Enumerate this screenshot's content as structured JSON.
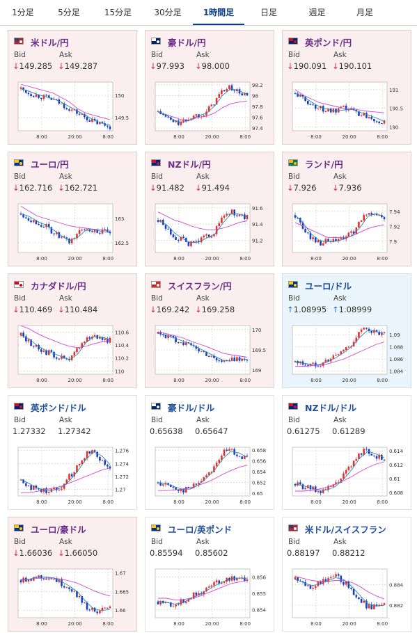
{
  "tabs": [
    {
      "label": "1分足",
      "active": false
    },
    {
      "label": "5分足",
      "active": false
    },
    {
      "label": "15分足",
      "active": false
    },
    {
      "label": "30分足",
      "active": false
    },
    {
      "label": "1時間足",
      "active": true
    },
    {
      "label": "日足",
      "active": false
    },
    {
      "label": "週足",
      "active": false
    },
    {
      "label": "月足",
      "active": false
    }
  ],
  "labels": {
    "bid": "Bid",
    "ask": "Ask"
  },
  "arrows": {
    "down": "↓",
    "up": "↑"
  },
  "colors": {
    "red": "#e53030",
    "blue": "#1a3ec0",
    "ma_pink": "#d444d4",
    "ma_teal": "#2a8aa8"
  },
  "cards": [
    {
      "pair": "米ドル/円",
      "flag": "us-jp-flag",
      "bid": "149.285",
      "ask": "149.287",
      "dir": "down",
      "yticks": [
        "150",
        "149.5"
      ],
      "xticks": [
        "8:00",
        "20:00",
        "8:00"
      ],
      "chart_data": {
        "type": "candlestick",
        "ylim": [
          149.2,
          150.3
        ],
        "ylim_note": "approx",
        "trend": [
          150.15,
          150.05,
          150.0,
          149.95,
          149.9,
          149.8,
          149.7,
          149.6,
          149.5,
          149.4,
          149.35,
          149.3
        ],
        "ma": [
          150.25,
          150.2,
          150.15,
          150.1,
          150.05,
          149.95,
          149.85,
          149.7,
          149.6,
          149.55,
          149.5,
          149.45
        ]
      }
    },
    {
      "pair": "豪ドル/円",
      "flag": "au-jp-flag",
      "bid": "97.993",
      "ask": "98.000",
      "dir": "down",
      "yticks": [
        "98.2",
        "98",
        "97.8",
        "97.6",
        "97.4"
      ],
      "xticks": [
        "8:00",
        "20:00",
        "8:00"
      ],
      "chart_data": {
        "type": "candlestick",
        "ylim": [
          97.35,
          98.25
        ],
        "trend": [
          97.7,
          97.6,
          97.5,
          97.5,
          97.6,
          97.65,
          97.7,
          97.9,
          98.1,
          98.15,
          98.05,
          98.0
        ],
        "ma": [
          97.7,
          97.65,
          97.6,
          97.55,
          97.55,
          97.6,
          97.62,
          97.68,
          97.78,
          97.85,
          97.88,
          97.9
        ]
      }
    },
    {
      "pair": "英ポンド/円",
      "flag": "uk-jp-flag",
      "bid": "190.091",
      "ask": "190.101",
      "dir": "down",
      "yticks": [
        "191",
        "190.5",
        "190"
      ],
      "xticks": [
        "8:00",
        "20:00",
        "8:00"
      ],
      "chart_data": {
        "type": "candlestick",
        "ylim": [
          189.9,
          191.2
        ],
        "trend": [
          190.9,
          190.75,
          190.6,
          190.5,
          190.45,
          190.4,
          190.5,
          190.45,
          190.35,
          190.3,
          190.2,
          190.1
        ],
        "ma": [
          191.0,
          190.85,
          190.75,
          190.65,
          190.6,
          190.55,
          190.5,
          190.5,
          190.45,
          190.42,
          190.4,
          190.38
        ]
      }
    },
    {
      "pair": "ユーロ/円",
      "flag": "eu-jp-flag",
      "bid": "162.716",
      "ask": "162.721",
      "dir": "down",
      "yticks": [
        "163",
        "162.5"
      ],
      "xticks": [
        "8:00",
        "20:00",
        "8:00"
      ],
      "chart_data": {
        "type": "candlestick",
        "ylim": [
          162.3,
          163.3
        ],
        "trend": [
          163.1,
          163.0,
          162.9,
          162.85,
          162.7,
          162.6,
          162.5,
          162.7,
          162.8,
          162.75,
          162.72,
          162.7
        ],
        "ma": [
          163.25,
          163.15,
          163.05,
          163.0,
          162.95,
          162.9,
          162.85,
          162.82,
          162.8,
          162.78,
          162.76,
          162.74
        ]
      }
    },
    {
      "pair": "NZドル/円",
      "flag": "nz-jp-flag",
      "bid": "91.482",
      "ask": "91.494",
      "dir": "down",
      "yticks": [
        "91.6",
        "91.4",
        "91.2"
      ],
      "xticks": [
        "8:00",
        "20:00",
        "8:00"
      ],
      "chart_data": {
        "type": "candlestick",
        "ylim": [
          91.05,
          91.65
        ],
        "trend": [
          91.45,
          91.35,
          91.25,
          91.2,
          91.15,
          91.2,
          91.25,
          91.3,
          91.5,
          91.55,
          91.5,
          91.48
        ],
        "ma": [
          91.55,
          91.5,
          91.45,
          91.42,
          91.38,
          91.35,
          91.33,
          91.33,
          91.35,
          91.38,
          91.42,
          91.44
        ]
      }
    },
    {
      "pair": "ランド/円",
      "flag": "za-jp-flag",
      "bid": "7.926",
      "ask": "7.936",
      "dir": "down",
      "yticks": [
        "7.94",
        "7.92",
        "7.9"
      ],
      "xticks": [
        "8:00",
        "20:00",
        "8:00"
      ],
      "chart_data": {
        "type": "candlestick",
        "ylim": [
          7.885,
          7.95
        ],
        "trend": [
          7.935,
          7.915,
          7.905,
          7.898,
          7.9,
          7.9,
          7.905,
          7.91,
          7.925,
          7.94,
          7.935,
          7.93
        ],
        "ma": [
          7.925,
          7.92,
          7.915,
          7.91,
          7.905,
          7.905,
          7.905,
          7.907,
          7.912,
          7.917,
          7.92,
          7.922
        ]
      }
    },
    {
      "pair": "カナダドル/円",
      "flag": "ca-jp-flag",
      "bid": "110.469",
      "ask": "110.484",
      "dir": "down",
      "yticks": [
        "110.6",
        "110.4",
        "110.2",
        "110"
      ],
      "xticks": [
        "8:00",
        "20:00",
        "8:00"
      ],
      "chart_data": {
        "type": "candlestick",
        "ylim": [
          109.95,
          110.7
        ],
        "trend": [
          110.55,
          110.45,
          110.35,
          110.3,
          110.25,
          110.2,
          110.15,
          110.35,
          110.5,
          110.55,
          110.5,
          110.47
        ],
        "ma": [
          110.7,
          110.65,
          110.58,
          110.52,
          110.47,
          110.42,
          110.38,
          110.36,
          110.38,
          110.42,
          110.45,
          110.47
        ]
      }
    },
    {
      "pair": "スイスフラン/円",
      "flag": "ch-jp-flag",
      "bid": "169.242",
      "ask": "169.258",
      "dir": "down",
      "yticks": [
        "170",
        "169.5",
        "169"
      ],
      "xticks": [
        "8:00",
        "20:00",
        "8:00"
      ],
      "chart_data": {
        "type": "candlestick",
        "ylim": [
          168.9,
          170.1
        ],
        "trend": [
          169.9,
          169.85,
          169.75,
          169.7,
          169.6,
          169.5,
          169.4,
          169.3,
          169.2,
          169.25,
          169.3,
          169.25
        ],
        "ma": [
          169.95,
          169.9,
          169.85,
          169.8,
          169.72,
          169.65,
          169.58,
          169.5,
          169.42,
          169.38,
          169.35,
          169.32
        ]
      }
    },
    {
      "pair": "ユーロ/ドル",
      "flag": "eu-us-flag",
      "bid": "1.08995",
      "ask": "1.08999",
      "dir": "up",
      "yticks": [
        "1.09",
        "1.088",
        "1.086",
        "1.084"
      ],
      "xticks": [
        "8:00",
        "20:00",
        "8:00"
      ],
      "chart_data": {
        "type": "candlestick",
        "ylim": [
          1.0835,
          1.0915
        ],
        "trend": [
          1.0855,
          1.0852,
          1.085,
          1.0852,
          1.0858,
          1.0865,
          1.0875,
          1.0885,
          1.0905,
          1.091,
          1.0902,
          1.0899
        ],
        "ma": [
          1.0848,
          1.0848,
          1.0849,
          1.085,
          1.0852,
          1.0856,
          1.086,
          1.0866,
          1.0872,
          1.0878,
          1.0884,
          1.0888
        ]
      }
    },
    {
      "pair": "英ポンド/ドル",
      "flag": "uk-us-flag",
      "bid": "1.27332",
      "ask": "1.27342",
      "dir": "flat",
      "yticks": [
        "1.276",
        "1.274",
        "1.272",
        "1.27"
      ],
      "xticks": [
        "8:00",
        "20:00",
        "8:00"
      ],
      "chart_data": {
        "type": "candlestick",
        "ylim": [
          1.269,
          1.2765
        ],
        "trend": [
          1.2715,
          1.2705,
          1.27,
          1.2698,
          1.27,
          1.2705,
          1.272,
          1.2735,
          1.2755,
          1.276,
          1.2745,
          1.2733
        ],
        "ma": [
          1.2695,
          1.2695,
          1.2697,
          1.27,
          1.2702,
          1.2705,
          1.271,
          1.2715,
          1.272,
          1.2725,
          1.273,
          1.2733
        ]
      }
    },
    {
      "pair": "豪ドル/ドル",
      "flag": "au-us-flag",
      "bid": "0.65638",
      "ask": "0.65647",
      "dir": "flat",
      "yticks": [
        "0.658",
        "0.656",
        "0.654",
        "0.652",
        "0.65"
      ],
      "xticks": [
        "8:00",
        "20:00",
        "8:00"
      ],
      "chart_data": {
        "type": "candlestick",
        "ylim": [
          0.6495,
          0.6585
        ],
        "trend": [
          0.652,
          0.6515,
          0.651,
          0.6505,
          0.651,
          0.652,
          0.6535,
          0.655,
          0.6575,
          0.658,
          0.657,
          0.6564
        ],
        "ma": [
          0.6505,
          0.6505,
          0.6506,
          0.6508,
          0.651,
          0.6515,
          0.652,
          0.6527,
          0.6535,
          0.6542,
          0.6548,
          0.6552
        ]
      }
    },
    {
      "pair": "NZドル/ドル",
      "flag": "nz-us-flag",
      "bid": "0.61275",
      "ask": "0.61289",
      "dir": "flat",
      "yticks": [
        "0.614",
        "0.612",
        "0.61",
        "0.608"
      ],
      "xticks": [
        "8:00",
        "20:00",
        "8:00"
      ],
      "chart_data": {
        "type": "candlestick",
        "ylim": [
          0.6075,
          0.6145
        ],
        "trend": [
          0.6092,
          0.6088,
          0.6085,
          0.6082,
          0.6085,
          0.6092,
          0.6105,
          0.612,
          0.6138,
          0.614,
          0.6132,
          0.6128
        ],
        "ma": [
          0.6082,
          0.6082,
          0.6083,
          0.6085,
          0.6088,
          0.6092,
          0.6097,
          0.6103,
          0.611,
          0.6116,
          0.6121,
          0.6124
        ]
      }
    },
    {
      "pair": "ユーロ/豪ドル",
      "flag": "eu-au-flag",
      "bid": "1.66036",
      "ask": "1.66050",
      "dir": "down",
      "yticks": [
        "1.67",
        "1.665",
        "1.66"
      ],
      "xticks": [
        "8:00",
        "20:00",
        "8:00"
      ],
      "chart_data": {
        "type": "candlestick",
        "ylim": [
          1.658,
          1.671
        ],
        "trend": [
          1.668,
          1.6685,
          1.669,
          1.6688,
          1.6685,
          1.667,
          1.666,
          1.664,
          1.661,
          1.6598,
          1.66,
          1.6604
        ],
        "ma": [
          1.6682,
          1.6683,
          1.6685,
          1.6686,
          1.6686,
          1.6683,
          1.6678,
          1.6672,
          1.6662,
          1.6652,
          1.6644,
          1.6638
        ]
      }
    },
    {
      "pair": "ユーロ/英ポンド",
      "flag": "eu-uk-flag",
      "bid": "0.85594",
      "ask": "0.85602",
      "dir": "flat",
      "yticks": [
        "0.856",
        "0.855",
        "0.854"
      ],
      "xticks": [
        "8:00",
        "20:00",
        "8:00"
      ],
      "chart_data": {
        "type": "candlestick",
        "ylim": [
          0.8535,
          0.8565
        ],
        "trend": [
          0.8545,
          0.8544,
          0.8543,
          0.8545,
          0.8548,
          0.855,
          0.8553,
          0.8556,
          0.8558,
          0.856,
          0.8559,
          0.8559
        ],
        "ma": [
          0.8547,
          0.8547,
          0.8546,
          0.8546,
          0.8547,
          0.8548,
          0.855,
          0.8552,
          0.8554,
          0.8556,
          0.8557,
          0.8558
        ]
      }
    },
    {
      "pair": "米ドル/スイスフラン",
      "flag": "us-ch-flag",
      "bid": "0.88197",
      "ask": "0.88212",
      "dir": "flat",
      "yticks": [
        "0.884",
        "0.882"
      ],
      "xticks": [
        "8:00",
        "20:00",
        "8:00"
      ],
      "chart_data": {
        "type": "candlestick",
        "ylim": [
          0.8808,
          0.8855
        ],
        "trend": [
          0.8845,
          0.884,
          0.8838,
          0.8842,
          0.8845,
          0.8848,
          0.8842,
          0.8835,
          0.8825,
          0.8818,
          0.882,
          0.882
        ],
        "ma": [
          0.8848,
          0.8846,
          0.8844,
          0.8843,
          0.8843,
          0.8844,
          0.8844,
          0.8842,
          0.8838,
          0.8833,
          0.8829,
          0.8826
        ]
      }
    }
  ]
}
